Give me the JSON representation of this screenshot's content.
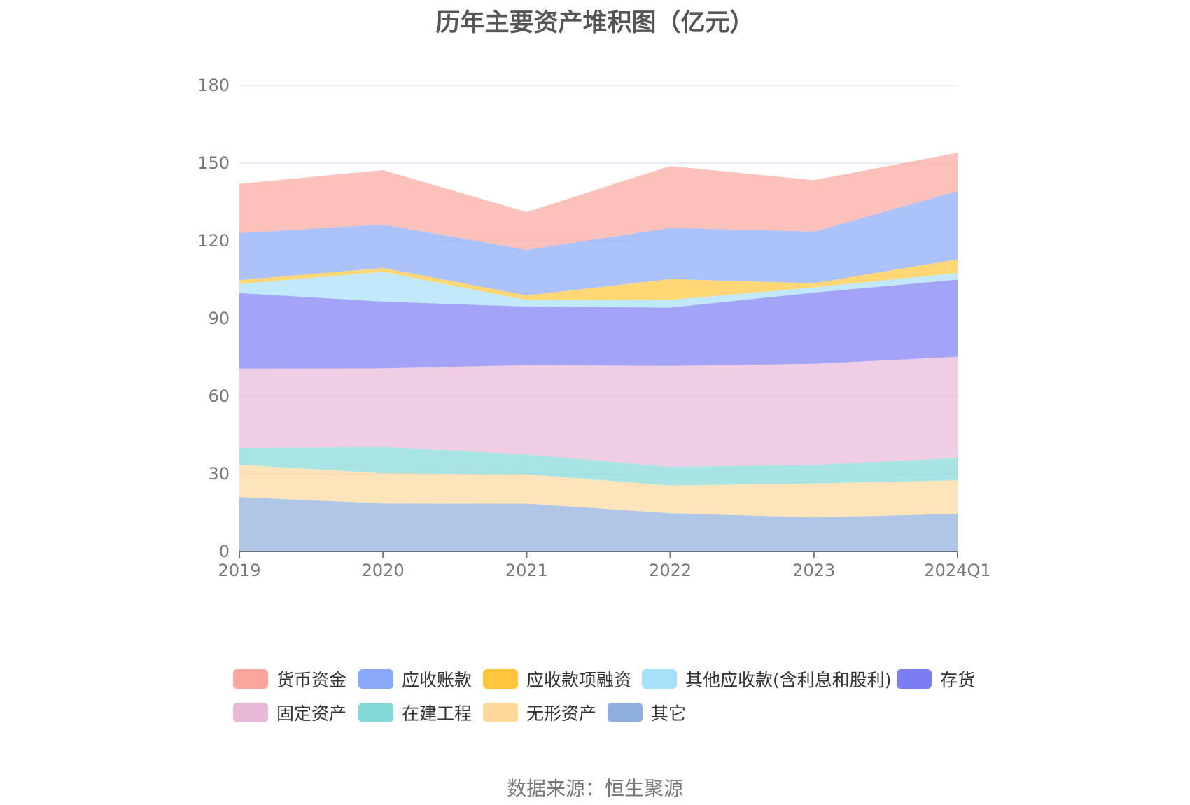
{
  "title": "历年主要资产堆积图（亿元）",
  "source": "数据来源：恒生聚源",
  "chart_data": {
    "type": "area",
    "stacked": true,
    "categories": [
      "2019",
      "2020",
      "2021",
      "2022",
      "2023",
      "2024Q1"
    ],
    "ylim": [
      0,
      180
    ],
    "yticks": [
      0,
      30,
      60,
      90,
      120,
      150,
      180
    ],
    "grid": true,
    "legend_position": "bottom",
    "series": [
      {
        "name": "其它",
        "color": "#8eaedc",
        "values": [
          21.0,
          18.6,
          18.5,
          14.8,
          13.2,
          14.6
        ]
      },
      {
        "name": "无形资产",
        "color": "#fdd99c",
        "values": [
          12.5,
          11.6,
          11.3,
          10.7,
          13.1,
          12.9
        ]
      },
      {
        "name": "在建工程",
        "color": "#85d8d8",
        "values": [
          6.5,
          10.2,
          7.7,
          7.2,
          7.2,
          8.6
        ]
      },
      {
        "name": "固定资产",
        "color": "#e8b8d8",
        "values": [
          30.6,
          30.3,
          34.5,
          39.0,
          39.0,
          39.1
        ]
      },
      {
        "name": "存货",
        "color": "#7c7cf4",
        "values": [
          29.2,
          25.8,
          22.6,
          22.5,
          27.5,
          29.8
        ]
      },
      {
        "name": "其他应收款(含利息和股利)",
        "color": "#a8e0fa",
        "values": [
          3.5,
          11.5,
          2.5,
          3.0,
          2.0,
          2.6
        ]
      },
      {
        "name": "应收款项融资",
        "color": "#ffc63b",
        "values": [
          1.5,
          1.5,
          1.8,
          8.0,
          1.6,
          5.2
        ]
      },
      {
        "name": "应收账款",
        "color": "#89a8fa",
        "values": [
          18.2,
          16.8,
          17.6,
          19.8,
          20.0,
          26.4
        ]
      },
      {
        "name": "货币资金",
        "color": "#fba69d",
        "values": [
          19.0,
          21.0,
          14.6,
          23.9,
          19.8,
          14.8
        ]
      }
    ],
    "legend_order": [
      "货币资金",
      "应收账款",
      "应收款项融资",
      "其他应收款(含利息和股利)",
      "存货",
      "固定资产",
      "在建工程",
      "无形资产",
      "其它"
    ]
  }
}
